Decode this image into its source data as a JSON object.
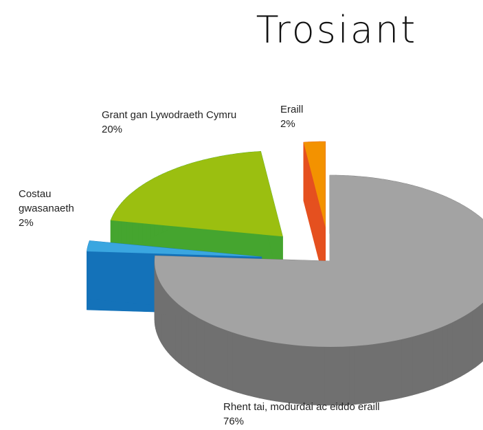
{
  "chart_data": {
    "type": "pie",
    "title": "Trosiant",
    "categories": [
      "Rhent tai, modurdai ac eiddo eraill",
      "Costau gwasanaeth",
      "Grant gan Lywodraeth Cymru",
      "Eraill"
    ],
    "values": [
      76,
      2,
      20,
      2
    ],
    "value_labels": [
      "76%",
      "2%",
      "20%",
      "2%"
    ],
    "colors": [
      "#a3a3a3",
      "#3aa6e0",
      "#9bbf10",
      "#f39200"
    ],
    "side_colors": [
      "#707070",
      "#1472b9",
      "#45a52f",
      "#e5501f"
    ],
    "exploded": true,
    "three_d": true
  }
}
